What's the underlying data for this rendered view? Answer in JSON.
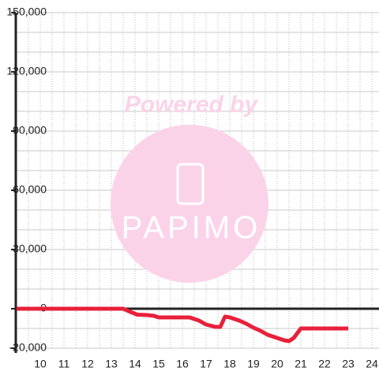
{
  "chart_data": {
    "type": "line",
    "watermark": {
      "caption": "Powered by",
      "brand": "PAPIMO"
    },
    "x": [
      9,
      13.5,
      13.8,
      14.1,
      14.5,
      14.8,
      15.0,
      15.5,
      16.0,
      16.3,
      16.7,
      17.0,
      17.4,
      17.6,
      17.8,
      18.0,
      18.4,
      18.7,
      19.0,
      19.3,
      19.6,
      20.0,
      20.3,
      20.5,
      20.7,
      21.0,
      21.5,
      22.0,
      23.0
    ],
    "series": [
      {
        "color": "#e8203a",
        "values": [
          0,
          0,
          -1600,
          -3000,
          -3200,
          -3600,
          -4400,
          -4400,
          -4400,
          -4400,
          -6000,
          -8000,
          -9200,
          -9200,
          -4000,
          -4400,
          -6000,
          -7600,
          -9600,
          -11200,
          -13200,
          -14800,
          -16000,
          -16400,
          -14800,
          -10000,
          -10000,
          -10000,
          -10000
        ]
      }
    ],
    "xlim": [
      9,
      24.3
    ],
    "ylim": [
      -20000,
      150000
    ],
    "xticks": [
      10,
      11,
      12,
      13,
      14,
      15,
      16,
      17,
      18,
      19,
      20,
      21,
      22,
      23,
      24
    ],
    "yticks": [
      {
        "value": -20000,
        "label": "-20,000"
      },
      {
        "value": 0,
        "label": "0"
      },
      {
        "value": 30000,
        "label": "30,000"
      },
      {
        "value": 60000,
        "label": "60,000"
      },
      {
        "value": 90000,
        "label": "90,000"
      },
      {
        "value": 120000,
        "label": "120,000"
      },
      {
        "value": 150000,
        "label": "150,000"
      }
    ],
    "ygrid": [
      -20000,
      -10000,
      0,
      10000,
      20000,
      30000,
      40000,
      50000,
      60000,
      70000,
      80000,
      90000,
      100000,
      110000,
      120000,
      130000,
      140000,
      150000
    ],
    "xgrid": [
      9.5,
      10,
      10.5,
      11,
      11.5,
      12,
      12.5,
      13,
      13.5,
      14,
      14.5,
      15,
      15.5,
      16,
      16.5,
      17,
      17.5,
      18,
      18.5,
      19,
      19.5,
      20,
      20.5,
      21,
      21.5,
      22,
      22.5,
      23,
      23.5,
      24
    ],
    "grid": true
  }
}
